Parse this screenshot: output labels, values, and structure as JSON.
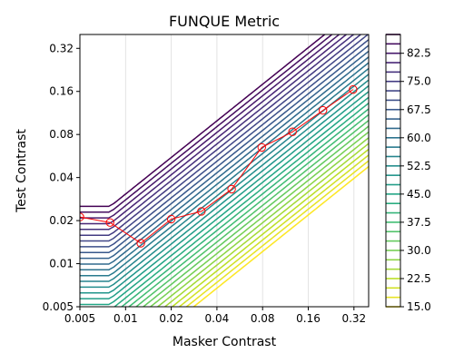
{
  "chart_data": {
    "type": "contour",
    "title": "FUNQUE Metric",
    "xlabel": "Masker Contrast",
    "ylabel": "Test Contrast",
    "xscale": "log",
    "yscale": "log",
    "xlim": [
      0.005,
      0.4
    ],
    "ylim": [
      0.005,
      0.4
    ],
    "x_ticks": [
      0.005,
      0.01,
      0.02,
      0.04,
      0.08,
      0.16,
      0.32
    ],
    "x_tick_labels": [
      "0.005",
      "0.01",
      "0.02",
      "0.04",
      "0.08",
      "0.16",
      "0.32"
    ],
    "y_ticks": [
      0.005,
      0.01,
      0.02,
      0.04,
      0.08,
      0.16,
      0.32
    ],
    "y_tick_labels": [
      "0.005",
      "0.01",
      "0.02",
      "0.04",
      "0.08",
      "0.16",
      "0.32"
    ],
    "grid": "vertical-lines-at-x-ticks",
    "colorbar": {
      "range": [
        15.0,
        87.5
      ],
      "levels": [
        15.0,
        17.5,
        20.0,
        22.5,
        25.0,
        27.5,
        30.0,
        32.5,
        35.0,
        37.5,
        40.0,
        42.5,
        45.0,
        47.5,
        50.0,
        52.5,
        55.0,
        57.5,
        60.0,
        62.5,
        65.0,
        67.5,
        70.0,
        72.5,
        75.0,
        77.5,
        80.0,
        82.5,
        85.0,
        87.5
      ],
      "tick_labels": [
        "15.0",
        "22.5",
        "30.0",
        "37.5",
        "45.0",
        "52.5",
        "60.0",
        "67.5",
        "75.0",
        "82.5"
      ],
      "colormap": "viridis-reversed",
      "placement": "right"
    },
    "threshold_series": {
      "color": "#ff0000",
      "marker": "open-circle",
      "x": [
        0.005,
        0.0079,
        0.0126,
        0.02,
        0.0316,
        0.05,
        0.079,
        0.126,
        0.2,
        0.316
      ],
      "y": [
        0.0212,
        0.0194,
        0.0139,
        0.0205,
        0.0232,
        0.0332,
        0.065,
        0.0835,
        0.118,
        0.165
      ]
    }
  }
}
